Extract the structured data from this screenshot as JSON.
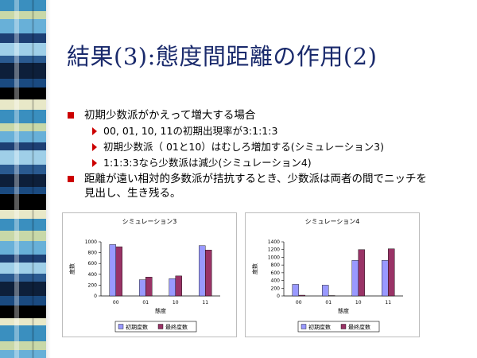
{
  "slide": {
    "title": "結果(3):態度間距離の作用(2)",
    "bullets": [
      {
        "text": "初期少数派がかえって増大する場合",
        "sub": [
          "00, 01, 10, 11の初期出現率が3:1:1:3",
          "初期少数派（ 01と10）はむしろ増加する(シミュレーション3)",
          "1:1:3:3なら少数派は減少(シミュレーション4)"
        ]
      },
      {
        "text": "距離が遠い相対的多数派が拮抗するとき、少数派は両者の間でニッチを見出し、生き残る。"
      }
    ]
  },
  "colors": {
    "title": "#1a2a6c",
    "bullet": "#cc0000",
    "series_initial": "#9999ff",
    "series_final": "#993366"
  },
  "chart_data": [
    {
      "type": "bar",
      "title": "シミュレーション3",
      "categories": [
        "00",
        "01",
        "10",
        "11"
      ],
      "series": [
        {
          "name": "初期度数",
          "values": [
            950,
            300,
            320,
            930
          ]
        },
        {
          "name": "最終度数",
          "values": [
            910,
            350,
            370,
            850
          ]
        }
      ],
      "xlabel": "態度",
      "ylabel": "度数",
      "ylim": [
        0,
        1000
      ],
      "yticks": [
        0,
        200,
        400,
        600,
        800,
        1000
      ],
      "grid": false,
      "legend": "bottom"
    },
    {
      "type": "bar",
      "title": "シミュレーション4",
      "categories": [
        "00",
        "01",
        "10",
        "11"
      ],
      "series": [
        {
          "name": "初期度数",
          "values": [
            300,
            280,
            920,
            920
          ]
        },
        {
          "name": "最終度数",
          "values": [
            20,
            10,
            1200,
            1220
          ]
        }
      ],
      "xlabel": "態度",
      "ylabel": "度数",
      "ylim": [
        0,
        1400
      ],
      "yticks": [
        0,
        200,
        400,
        600,
        800,
        1000,
        1200,
        1400
      ],
      "grid": false,
      "legend": "bottom"
    }
  ]
}
